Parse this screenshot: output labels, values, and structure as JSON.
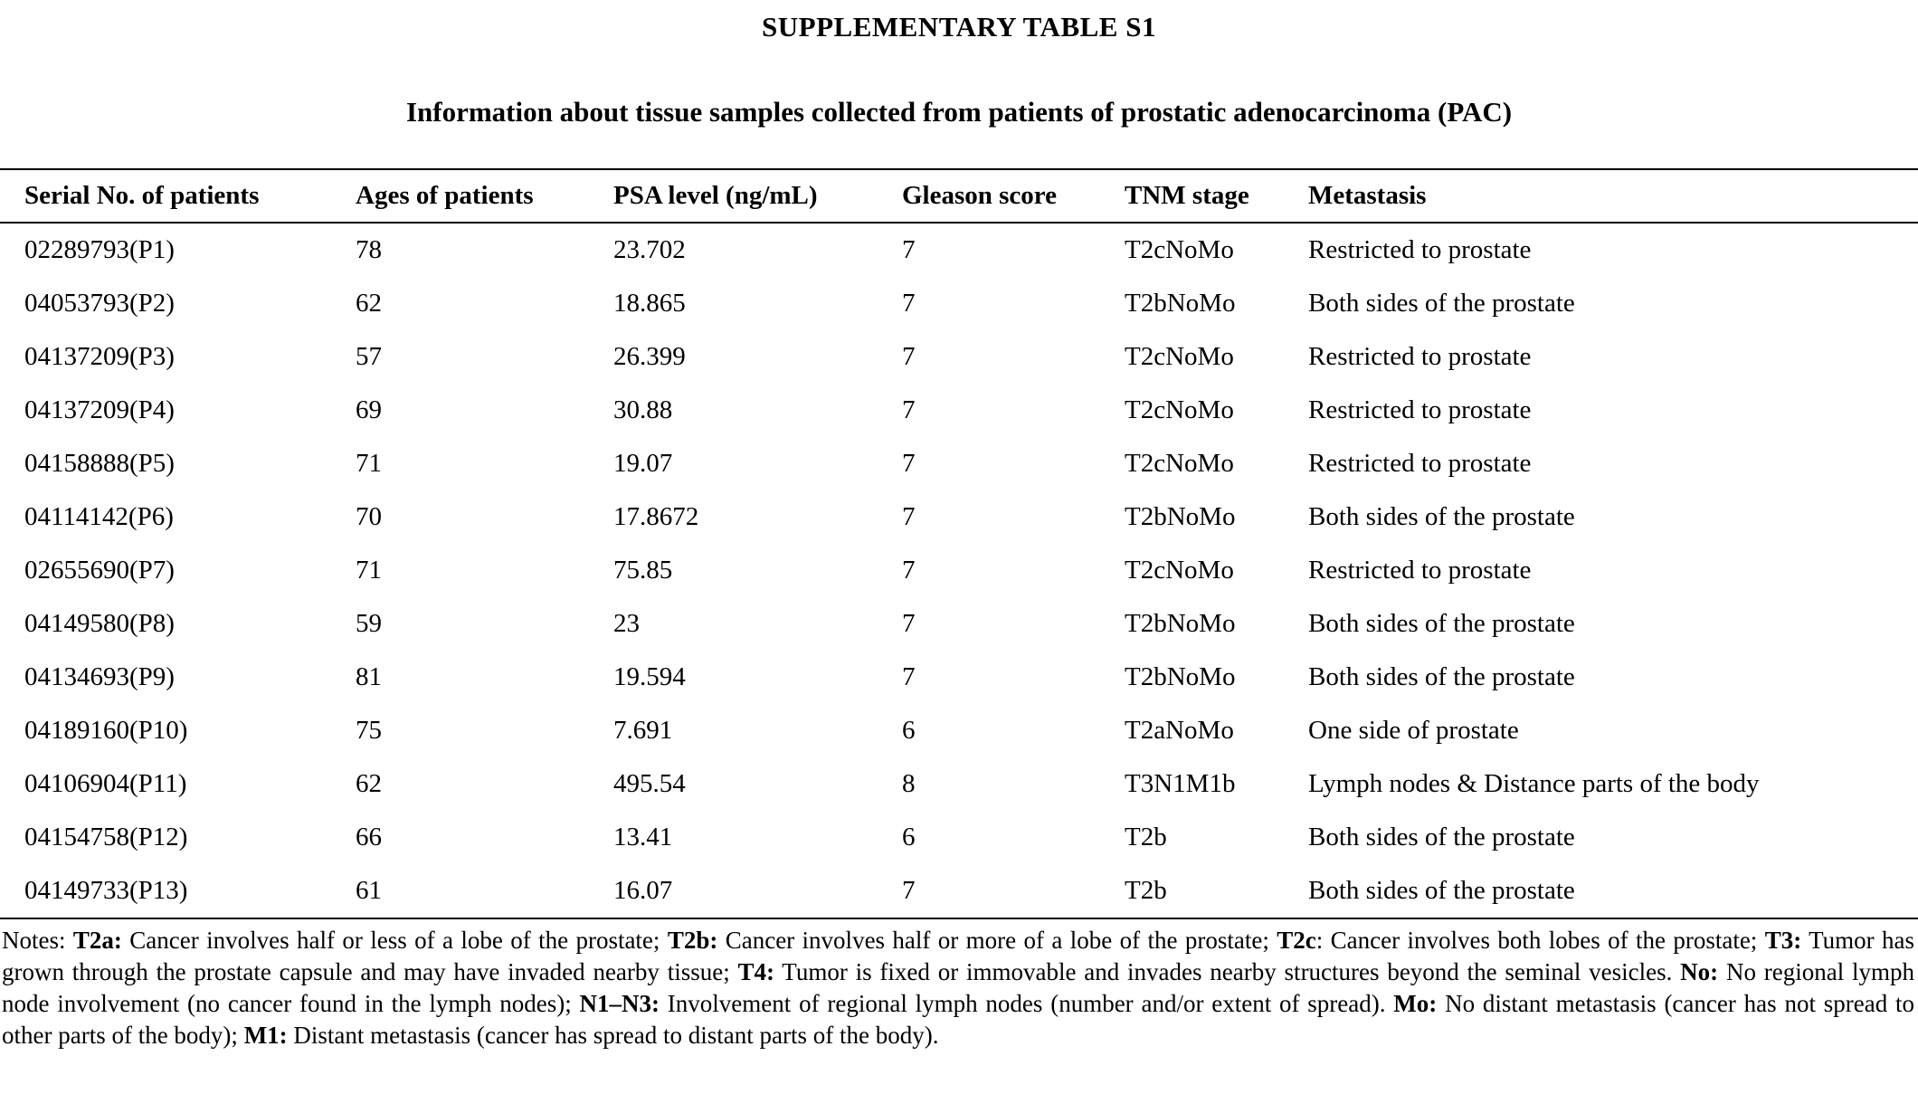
{
  "page": {
    "title": "SUPPLEMENTARY TABLE S1",
    "subtitle": "Information about tissue samples collected from patients of prostatic adenocarcinoma (PAC)"
  },
  "colors": {
    "text": "#000000",
    "background": "#ffffff",
    "rule": "#000000"
  },
  "table": {
    "columns": [
      "Serial No. of patients",
      "Ages of patients",
      "PSA level (ng/mL)",
      "Gleason score",
      "TNM stage",
      "Metastasis"
    ],
    "rows": [
      [
        "02289793(P1)",
        "78",
        "23.702",
        "7",
        "T2cNoMo",
        "Restricted to prostate"
      ],
      [
        "04053793(P2)",
        "62",
        "18.865",
        "7",
        "T2bNoMo",
        "Both sides of the prostate"
      ],
      [
        "04137209(P3)",
        "57",
        "26.399",
        "7",
        "T2cNoMo",
        "Restricted to prostate"
      ],
      [
        "04137209(P4)",
        "69",
        "30.88",
        "7",
        "T2cNoMo",
        "Restricted to prostate"
      ],
      [
        "04158888(P5)",
        "71",
        "19.07",
        "7",
        "T2cNoMo",
        "Restricted to prostate"
      ],
      [
        "04114142(P6)",
        "70",
        "17.8672",
        "7",
        "T2bNoMo",
        "Both sides of the prostate"
      ],
      [
        "02655690(P7)",
        "71",
        "75.85",
        "7",
        "T2cNoMo",
        "Restricted to prostate"
      ],
      [
        "04149580(P8)",
        "59",
        "23",
        "7",
        "T2bNoMo",
        "Both sides of the prostate"
      ],
      [
        "04134693(P9)",
        "81",
        "19.594",
        "7",
        "T2bNoMo",
        "Both sides of the prostate"
      ],
      [
        "04189160(P10)",
        "75",
        "7.691",
        "6",
        "T2aNoMo",
        "One side of prostate"
      ],
      [
        "04106904(P11)",
        "62",
        "495.54",
        "8",
        "T3N1M1b",
        "Lymph nodes & Distance parts of the body"
      ],
      [
        "04154758(P12)",
        "66",
        "13.41",
        "6",
        "T2b",
        "Both sides of the prostate"
      ],
      [
        "04149733(P13)",
        "61",
        "16.07",
        "7",
        "T2b",
        "Both sides of the prostate"
      ]
    ]
  },
  "notes": {
    "segments": [
      {
        "text": "Notes: ",
        "bold": false
      },
      {
        "text": "T2a:",
        "bold": true
      },
      {
        "text": " Cancer involves half or less of a lobe of the prostate; ",
        "bold": false
      },
      {
        "text": "T2b:",
        "bold": true
      },
      {
        "text": " Cancer involves half or more of a lobe of the prostate; ",
        "bold": false
      },
      {
        "text": "T2c",
        "bold": true
      },
      {
        "text": ": Cancer involves both lobes of the prostate; ",
        "bold": false
      },
      {
        "text": "T3:",
        "bold": true
      },
      {
        "text": " Tumor has grown through the prostate capsule and may have invaded nearby tissue; ",
        "bold": false
      },
      {
        "text": "T4:",
        "bold": true
      },
      {
        "text": " Tumor is fixed or immovable and invades nearby structures beyond the seminal vesicles. ",
        "bold": false
      },
      {
        "text": "No:",
        "bold": true
      },
      {
        "text": " No regional lymph node involvement (no cancer found in the lymph nodes); ",
        "bold": false
      },
      {
        "text": "N1–N3:",
        "bold": true
      },
      {
        "text": " Involvement of regional lymph nodes (number and/or extent of spread). ",
        "bold": false
      },
      {
        "text": "Mo:",
        "bold": true
      },
      {
        "text": " No distant metastasis (cancer has not spread to other parts of the body); ",
        "bold": false
      },
      {
        "text": "M1:",
        "bold": true
      },
      {
        "text": " Distant metastasis (cancer has spread to distant parts of the body).",
        "bold": false
      }
    ]
  }
}
